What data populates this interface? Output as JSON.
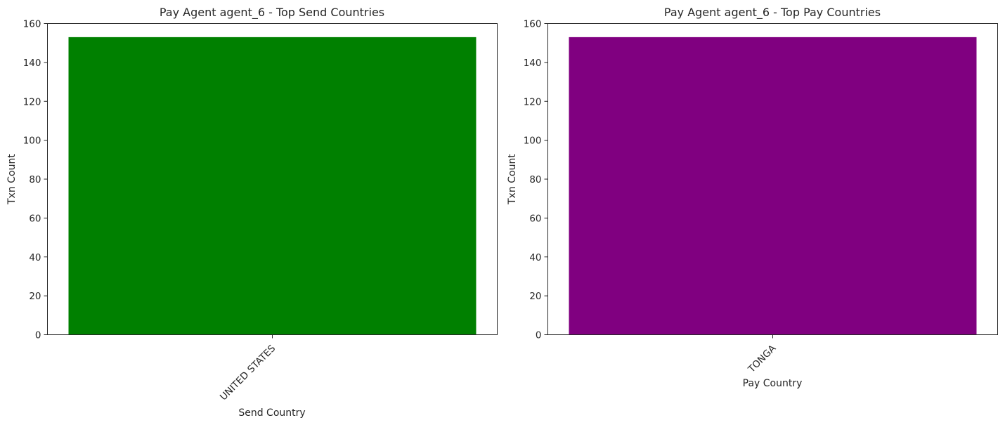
{
  "chart_data": [
    {
      "type": "bar",
      "title": "Pay Agent agent_6 - Top Send Countries",
      "xlabel": "Send Country",
      "ylabel": "Txn Count",
      "categories": [
        "UNITED STATES"
      ],
      "values": [
        153
      ],
      "ylim": [
        0,
        160
      ],
      "yticks": [
        0,
        20,
        40,
        60,
        80,
        100,
        120,
        140,
        160
      ],
      "xtick_rotation": 45,
      "bar_color": "#008000",
      "grid": false,
      "legend": "none"
    },
    {
      "type": "bar",
      "title": "Pay Agent agent_6 - Top Pay Countries",
      "xlabel": "Pay Country",
      "ylabel": "Txn Count",
      "categories": [
        "TONGA"
      ],
      "values": [
        153
      ],
      "ylim": [
        0,
        160
      ],
      "yticks": [
        0,
        20,
        40,
        60,
        80,
        100,
        120,
        140,
        160
      ],
      "xtick_rotation": 45,
      "bar_color": "#800080",
      "grid": false,
      "legend": "none"
    }
  ]
}
